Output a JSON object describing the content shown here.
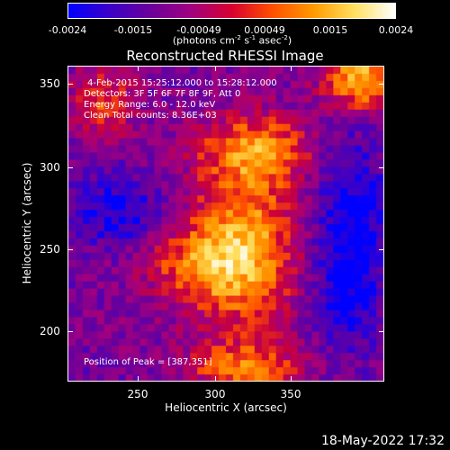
{
  "colorbar": {
    "ticks": [
      "-0.0024",
      "-0.0015",
      "-0.00049",
      "0.00049",
      "0.0015",
      "0.0024"
    ],
    "unit_base": "(photons cm",
    "unit_exp1": "-2",
    "unit_mid": " s",
    "unit_exp2": "-1",
    "unit_mid2": " asec",
    "unit_exp3": "-2",
    "unit_end": ")",
    "colors": [
      "#0000ff",
      "#3b00c8",
      "#6a009a",
      "#a00080",
      "#d80030",
      "#ff5000",
      "#ff9a00",
      "#ffe060",
      "#ffffff"
    ]
  },
  "title": "Reconstructed RHESSI Image",
  "info": {
    "time_range": "4-Feb-2015 15:25:12.000 to 15:28:12.000",
    "detectors": "Detectors: 3F 5F 6F 7F 8F 9F, Att 0",
    "energy": "Energy Range: 6.0 - 12.0 keV",
    "clean": "Clean     Total counts: 8.36E+03"
  },
  "axes": {
    "xlabel": "Heliocentric X (arcsec)",
    "ylabel": "Heliocentric Y (arcsec)",
    "xticks": [
      "250",
      "300",
      "350"
    ],
    "yticks": [
      "350",
      "300",
      "250",
      "200"
    ]
  },
  "peak": "Position of Peak = [387,351]",
  "timestamp": "18-May-2022 17:32"
}
